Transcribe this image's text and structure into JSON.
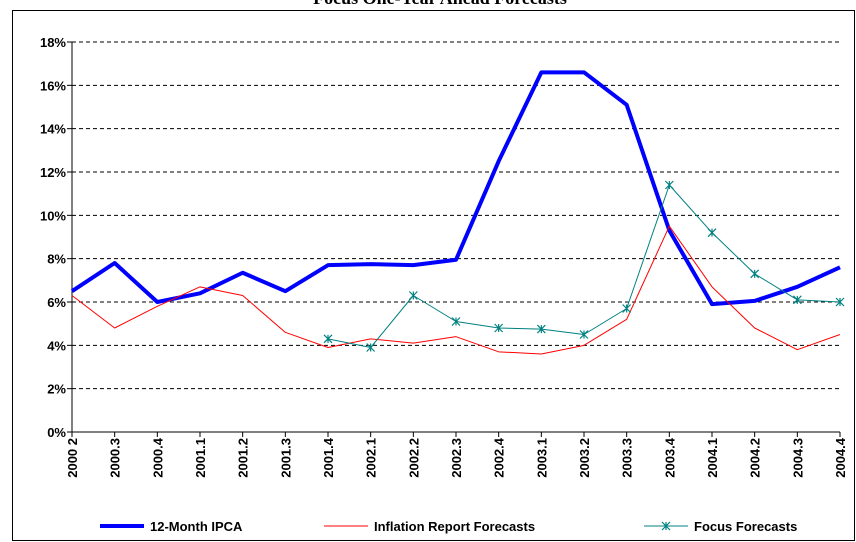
{
  "chart_data": {
    "type": "line",
    "title": "Focus One-Year Ahead Forecasts",
    "categories": [
      "2000 2",
      "2000.3",
      "2000.4",
      "2001.1",
      "2001.2",
      "2001.3",
      "2001.4",
      "2002.1",
      "2002.2",
      "2002.3",
      "2002.4",
      "2003.1",
      "2003.2",
      "2003.3",
      "2003.4",
      "2004.1",
      "2004.2",
      "2004.3",
      "2004.4"
    ],
    "series": [
      {
        "name": "12-Month IPCA",
        "color": "#0000ff",
        "values": [
          6.5,
          7.8,
          6.0,
          6.4,
          7.35,
          6.5,
          7.7,
          7.75,
          7.7,
          7.95,
          12.5,
          16.6,
          16.6,
          15.1,
          9.3,
          5.9,
          6.05,
          6.7,
          7.6
        ]
      },
      {
        "name": "Inflation Report Forecasts",
        "color": "#ff0000",
        "values": [
          6.3,
          4.8,
          5.8,
          6.7,
          6.3,
          4.6,
          3.9,
          4.3,
          4.1,
          4.4,
          3.7,
          3.6,
          4.0,
          5.2,
          9.5,
          6.7,
          4.8,
          3.8,
          4.5
        ]
      },
      {
        "name": "Focus Forecasts",
        "color": "#008080",
        "values": [
          null,
          null,
          null,
          null,
          null,
          null,
          4.3,
          3.9,
          6.3,
          5.1,
          4.8,
          4.75,
          4.5,
          5.7,
          11.4,
          9.2,
          7.3,
          6.1,
          6.0
        ]
      }
    ],
    "ylim": [
      0,
      18
    ],
    "yticks": [
      {
        "value": 0,
        "label": "0%"
      },
      {
        "value": 2,
        "label": "2%"
      },
      {
        "value": 4,
        "label": "4%"
      },
      {
        "value": 6,
        "label": "6%"
      },
      {
        "value": 8,
        "label": "8%"
      },
      {
        "value": 10,
        "label": "10%"
      },
      {
        "value": 12,
        "label": "12%"
      },
      {
        "value": 14,
        "label": "14%"
      },
      {
        "value": 16,
        "label": "16%"
      },
      {
        "value": 18,
        "label": "18%"
      }
    ],
    "grid": true
  }
}
